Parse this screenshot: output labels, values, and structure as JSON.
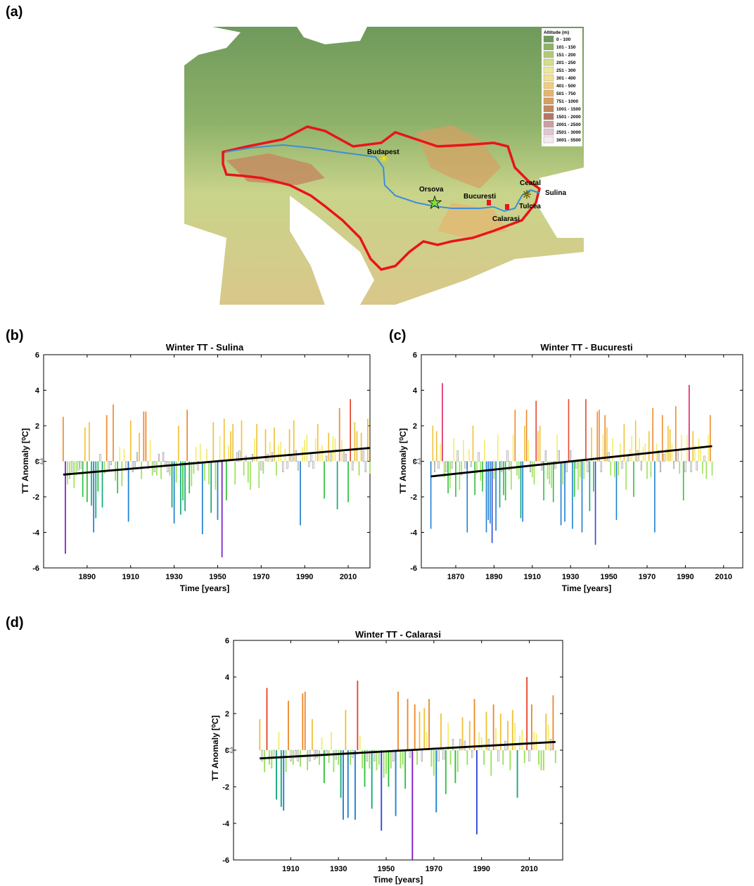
{
  "panels": {
    "a": "(a)",
    "b": "(b)",
    "c": "(c)",
    "d": "(d)"
  },
  "map": {
    "legend_title": "Altitude (m)",
    "legend": [
      {
        "label": "0 - 100",
        "color": "#6f9a5c"
      },
      {
        "label": "101 - 150",
        "color": "#8fb26a"
      },
      {
        "label": "151 - 200",
        "color": "#b3c97a"
      },
      {
        "label": "201 - 250",
        "color": "#d4dc8e"
      },
      {
        "label": "251 - 300",
        "color": "#ece7a0"
      },
      {
        "label": "301 - 400",
        "color": "#f3df97"
      },
      {
        "label": "401 - 500",
        "color": "#efcd83"
      },
      {
        "label": "501 - 750",
        "color": "#e6b56d"
      },
      {
        "label": "751 - 1000",
        "color": "#d69f62"
      },
      {
        "label": "1001 - 1500",
        "color": "#c4875f"
      },
      {
        "label": "1501 - 2000",
        "color": "#b27863"
      },
      {
        "label": "2001 - 2500",
        "color": "#c9a0a4"
      },
      {
        "label": "2501 - 3000",
        "color": "#e0c6d0"
      },
      {
        "label": "3001 - 5500",
        "color": "#f4eaf2"
      }
    ],
    "places": [
      "Budapest",
      "Orsova",
      "Bucuresti",
      "Calarasi",
      "Ceatal",
      "Tulcea",
      "Sulina"
    ]
  },
  "chart_data": [
    {
      "type": "bar",
      "title": "Winter TT - Sulina",
      "xlabel": "Time [years]",
      "ylabel": "TT Anomaly [⁰C]",
      "xlim": [
        1870,
        2020
      ],
      "ylim": [
        -6,
        6
      ],
      "xticks": [
        1890,
        1910,
        1930,
        1950,
        1970,
        1990,
        2010
      ],
      "yticks": [
        -6,
        -4,
        -2,
        0,
        2,
        4,
        6
      ],
      "start_year": 1879,
      "values": [
        2.5,
        -5.2,
        -1.3,
        -1.0,
        -0.6,
        -1.5,
        -0.8,
        -0.5,
        -0.4,
        -2.0,
        1.9,
        -2.3,
        2.2,
        -2.5,
        -4.0,
        -3.2,
        -1.7,
        0.4,
        -2.6,
        -0.7,
        2.6,
        -0.5,
        -0.2,
        3.2,
        -1.1,
        -1.8,
        0.8,
        -1.4,
        0.7,
        -0.5,
        -3.4,
        2.3,
        -0.6,
        -0.4,
        0.5,
        1.6,
        -1.0,
        2.8,
        2.8,
        -0.4,
        1.2,
        -0.8,
        -0.6,
        -0.8,
        0.4,
        -1.0,
        0.5,
        -0.3,
        -0.6,
        -0.8,
        -2.6,
        -3.5,
        -1.2,
        2.0,
        -3.0,
        -2.2,
        -2.8,
        2.9,
        -1.8,
        -1.4,
        -0.7,
        0.8,
        -0.5,
        1.0,
        -4.1,
        -1.1,
        0.7,
        -1.3,
        -2.9,
        2.2,
        -1.6,
        -3.3,
        1.4,
        -5.4,
        2.4,
        -2.2,
        0.9,
        1.7,
        2.1,
        -1.3,
        0.5,
        0.6,
        2.3,
        -0.8,
        0.3,
        -1.2,
        -1.6,
        0.4,
        1.3,
        2.1,
        -1.5,
        -0.5,
        -0.7,
        1.8,
        0.4,
        1.1,
        0.5,
        1.9,
        -0.8,
        0.9,
        1.1,
        -0.6,
        0.7,
        -0.4,
        1.8,
        0.3,
        2.3,
        0.6,
        -0.5,
        -3.6,
        0.8,
        1.2,
        1.5,
        -0.3,
        0.5,
        -0.4,
        1.3,
        2.1,
        0.7,
        0.9,
        -2.1,
        0.3,
        1.6,
        0.5,
        1.4,
        1.3,
        -2.7,
        3.0,
        1.2,
        0.5,
        0.4,
        -2.3,
        3.5,
        -0.5,
        2.2,
        1.7,
        -0.8,
        1.6,
        0.6,
        -0.6,
        2.4,
        -0.7
      ],
      "trend": [
        -0.75,
        0.75
      ]
    },
    {
      "type": "bar",
      "title": "Winter TT - Bucuresti",
      "xlabel": "Time [years]",
      "ylabel": "TT Anomaly [⁰C]",
      "xlim": [
        1852,
        2020
      ],
      "ylim": [
        -6,
        6
      ],
      "xticks": [
        1870,
        1890,
        1910,
        1930,
        1950,
        1970,
        1990,
        2010
      ],
      "yticks": [
        -6,
        -4,
        -2,
        0,
        2,
        4,
        6
      ],
      "start_year": 1857,
      "values": [
        -3.8,
        2.0,
        -0.6,
        1.7,
        -0.4,
        1.0,
        4.4,
        -0.9,
        -0.6,
        -1.8,
        -1.5,
        -0.4,
        1.3,
        -2.0,
        0.6,
        -1.6,
        -0.8,
        1.2,
        -0.4,
        -4.0,
        0.7,
        -0.3,
        2.0,
        -1.9,
        -0.7,
        0.5,
        -1.1,
        -1.7,
        1.2,
        -4.0,
        -3.3,
        -3.5,
        -4.6,
        -1.0,
        -3.9,
        1.5,
        -2.6,
        -0.6,
        -1.9,
        -2.2,
        0.6,
        -0.5,
        -1.6,
        1.5,
        2.9,
        -0.8,
        -1.0,
        -3.2,
        -3.4,
        2.0,
        2.9,
        1.2,
        -0.6,
        -0.9,
        -1.3,
        3.4,
        1.7,
        2.0,
        -0.5,
        -2.2,
        0.6,
        -1.0,
        -1.3,
        -1.5,
        -2.3,
        -0.4,
        1.5,
        0.6,
        -3.6,
        -1.3,
        -3.4,
        -0.6,
        3.5,
        0.6,
        -3.8,
        -2.0,
        -0.4,
        -1.6,
        -0.9,
        -4.0,
        -1.0,
        3.5,
        -0.6,
        -2.8,
        1.9,
        -1.7,
        -4.7,
        2.8,
        2.9,
        -0.6,
        1.5,
        2.6,
        1.9,
        0.5,
        -0.8,
        1.3,
        -0.9,
        -3.3,
        -0.8,
        1.0,
        -0.4,
        2.1,
        -1.6,
        0.3,
        0.7,
        1.4,
        -2.0,
        2.3,
        0.6,
        1.3,
        -0.5,
        0.8,
        1.0,
        -1.0,
        1.7,
        -0.9,
        3.0,
        -4.0,
        1.0,
        0.6,
        -0.6,
        2.6,
        0.4,
        0.7,
        2.0,
        1.8,
        1.0,
        -0.4,
        3.1,
        0.6,
        -0.7,
        1.5,
        -2.2,
        -0.6,
        1.5,
        4.3,
        -0.6,
        1.7,
        0.9,
        -0.5,
        1.3,
        0.9,
        -0.7,
        0.3,
        -1.0,
        1.5,
        2.6,
        -0.8
      ],
      "trend": [
        -0.85,
        0.85
      ]
    },
    {
      "type": "bar",
      "title": "Winter TT - Calarasi",
      "xlabel": "Time [years]",
      "ylabel": "TT Anomaly [⁰C]",
      "xlim": [
        1886,
        2024
      ],
      "ylim": [
        -6,
        6
      ],
      "xticks": [
        1910,
        1930,
        1950,
        1970,
        1990,
        2010
      ],
      "yticks": [
        -6,
        -4,
        -2,
        0,
        2,
        4,
        6
      ],
      "start_year": 1897,
      "values": [
        1.7,
        -0.6,
        -1.2,
        3.4,
        -0.8,
        -1.0,
        -0.4,
        -2.7,
        1.0,
        -3.1,
        -3.3,
        -1.2,
        2.7,
        -0.6,
        -0.8,
        -0.4,
        -0.6,
        -0.9,
        3.1,
        3.2,
        -1.1,
        -0.6,
        1.7,
        -0.5,
        -0.4,
        -0.8,
        0.7,
        -1.8,
        -0.3,
        -0.7,
        1.0,
        -1.2,
        -0.5,
        -0.8,
        -2.6,
        -3.8,
        2.2,
        -3.7,
        -0.8,
        -0.4,
        -3.8,
        3.8,
        0.8,
        -1.0,
        -2.0,
        -0.6,
        -1.0,
        -3.2,
        -0.6,
        -1.1,
        -0.8,
        -4.4,
        -1.5,
        -1.3,
        -2.0,
        -1.0,
        -0.6,
        -3.6,
        3.2,
        -1.0,
        -0.8,
        -2.1,
        2.8,
        -0.4,
        -6.0,
        2.5,
        -0.8,
        2.1,
        -0.6,
        2.3,
        1.0,
        2.8,
        -0.9,
        -1.4,
        -3.4,
        -0.6,
        2.0,
        -0.5,
        -2.4,
        1.5,
        -0.8,
        0.6,
        -1.8,
        -1.2,
        0.6,
        1.8,
        0.5,
        -0.8,
        1.6,
        -0.4,
        2.8,
        -4.6,
        1.0,
        0.7,
        -0.8,
        2.1,
        0.6,
        -1.4,
        2.5,
        1.2,
        -0.6,
        2.0,
        -0.8,
        0.5,
        1.6,
        -1.1,
        2.2,
        1.5,
        -2.6,
        0.8,
        1.1,
        -0.7,
        4.0,
        -0.6,
        2.5,
        1.0,
        0.9,
        -0.8,
        -1.1,
        -1.1,
        2.0,
        1.4,
        0.6,
        3.0,
        -0.7
      ],
      "trend": [
        -0.45,
        0.45
      ]
    }
  ]
}
